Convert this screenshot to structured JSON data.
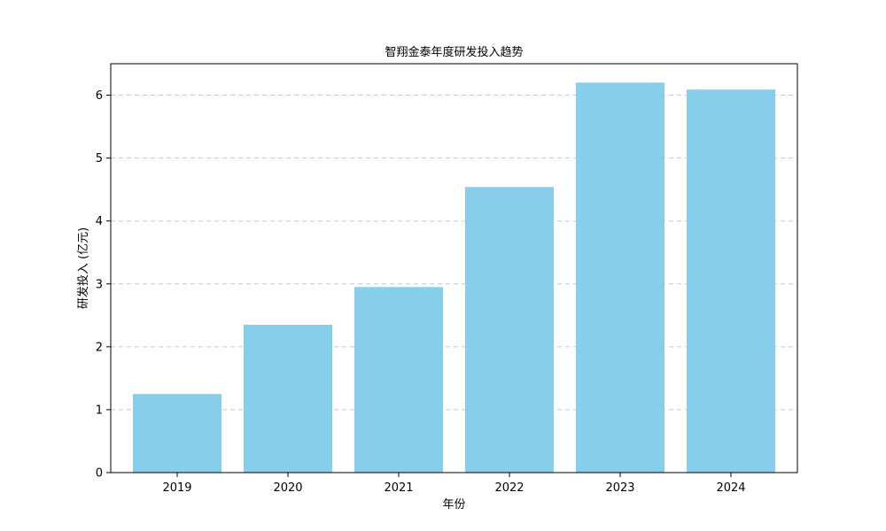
{
  "chart_data": {
    "type": "bar",
    "title": "智翔金泰年度研发投入趋势",
    "xlabel": "年份",
    "ylabel": "研发投入 (亿元)",
    "categories": [
      "2019",
      "2020",
      "2021",
      "2022",
      "2023",
      "2024"
    ],
    "values": [
      1.25,
      2.35,
      2.95,
      4.54,
      6.2,
      6.09
    ],
    "ylim": [
      0,
      6.5
    ],
    "yticks": [
      "0",
      "1",
      "2",
      "3",
      "4",
      "5",
      "6"
    ],
    "grid": {
      "y": true,
      "style": "dashed"
    },
    "bar_color": "#87CEEB"
  }
}
